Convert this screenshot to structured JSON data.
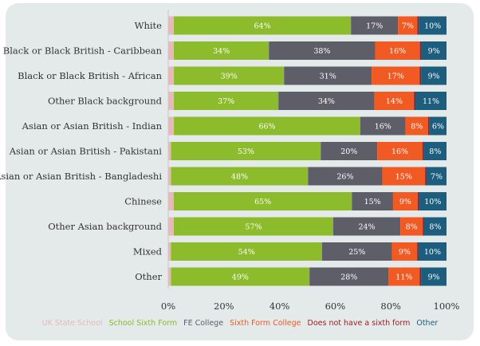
{
  "chart_data": {
    "type": "bar",
    "orientation": "horizontal",
    "stacked": true,
    "categories": [
      "White",
      "Black or Black British - Caribbean",
      "Black or Black British - African",
      "Other Black background",
      "Asian or Asian British - Indian",
      "Asian or Asian British - Pakistani",
      "Asian or Asian British - Bangladeshi",
      "Chinese",
      "Other Asian background",
      "Mixed",
      "Other"
    ],
    "series": [
      {
        "name": "UK State School",
        "color": "#e7b9bc",
        "values": [
          2,
          2,
          2,
          2,
          2,
          1,
          1,
          2,
          2,
          1,
          1
        ],
        "labels": [
          "",
          "",
          "",
          "",
          "",
          "",
          "",
          "",
          "",
          "",
          ""
        ]
      },
      {
        "name": "School Sixth Form",
        "color": "#8cbb2c",
        "values": [
          64,
          34,
          39,
          37,
          66,
          53,
          48,
          65,
          57,
          54,
          49
        ],
        "labels": [
          "64%",
          "34%",
          "39%",
          "37%",
          "66%",
          "53%",
          "48%",
          "65%",
          "57%",
          "54%",
          "49%"
        ]
      },
      {
        "name": "FE College",
        "color": "#5e5e68",
        "values": [
          17,
          38,
          31,
          34,
          16,
          20,
          26,
          15,
          24,
          25,
          28
        ],
        "labels": [
          "17%",
          "38%",
          "31%",
          "34%",
          "16%",
          "20%",
          "26%",
          "15%",
          "24%",
          "25%",
          "28%"
        ]
      },
      {
        "name": "Sixth Form College",
        "color": "#f15a22",
        "values": [
          7,
          16,
          17,
          14,
          8,
          16,
          15,
          9,
          8,
          9,
          11
        ],
        "labels": [
          "7%",
          "16%",
          "17%",
          "14%",
          "8%",
          "16%",
          "15%",
          "9%",
          "8%",
          "9%",
          "11%"
        ]
      },
      {
        "name": "Does not have a sixth form",
        "color": "#9b1b1e",
        "values": [
          0.5,
          0.5,
          0.5,
          0.5,
          0.5,
          0.5,
          0.5,
          0.5,
          0.5,
          0.5,
          0.5
        ],
        "labels": [
          "",
          "",
          "",
          "",
          "",
          "",
          "",
          "",
          "",
          "",
          ""
        ]
      },
      {
        "name": "Other",
        "color": "#1d5e7e",
        "values": [
          10,
          9,
          9,
          11,
          6,
          8,
          7,
          10,
          8,
          10,
          9
        ],
        "labels": [
          "10%",
          "9%",
          "9%",
          "11%",
          "6%",
          "8%",
          "7%",
          "10%",
          "8%",
          "10%",
          "9%"
        ]
      }
    ],
    "x_ticks": [
      "0%",
      "20%",
      "40%",
      "60%",
      "80%",
      "100%"
    ],
    "xlim": [
      0,
      100
    ],
    "grid": false,
    "legend_position": "bottom"
  }
}
